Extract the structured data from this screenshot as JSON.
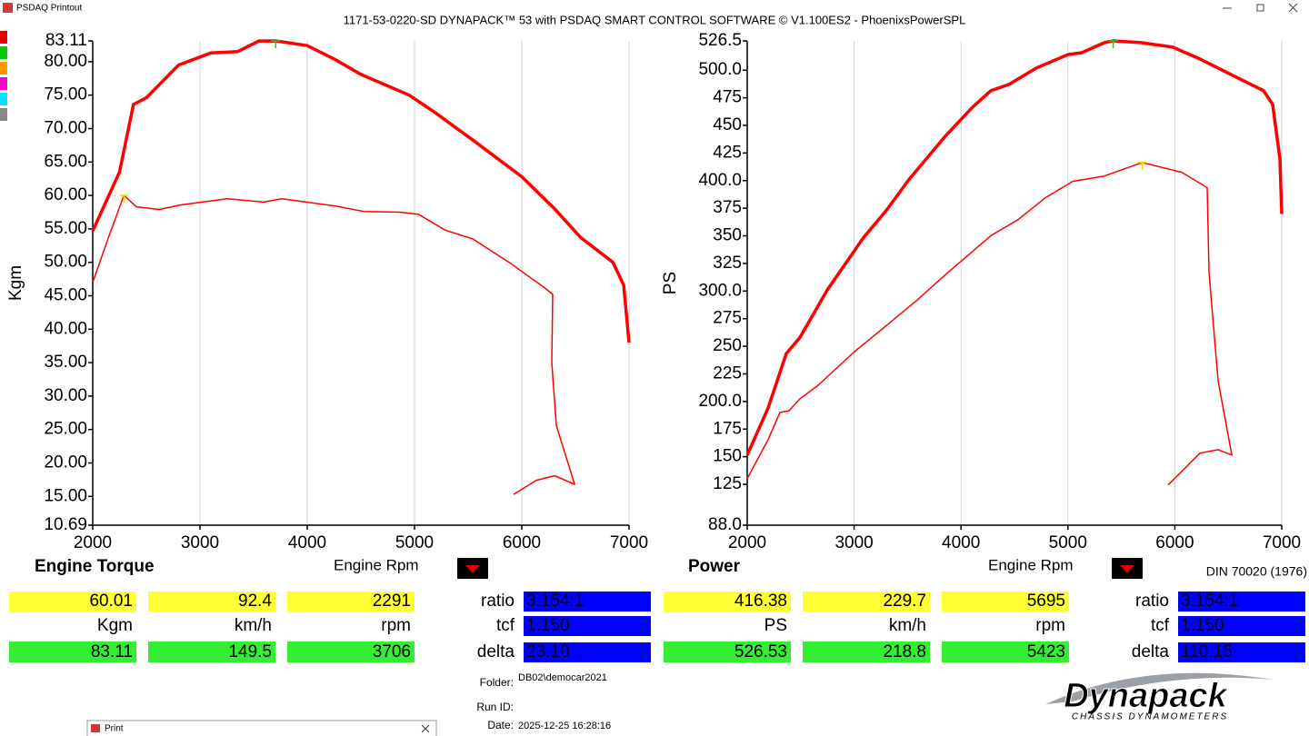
{
  "window": {
    "title": "PSDAQ Printout"
  },
  "header": {
    "title": "1171-53-0220-SD DYNAPACK™ 53 with PSDAQ SMART CONTROL SOFTWARE © V1.100ES2 - PhoenixsPowerSPL"
  },
  "chart_data": [
    {
      "type": "line",
      "y_label": "Kgm",
      "xlim": [
        2000,
        7000
      ],
      "xticks": [
        2000,
        3000,
        4000,
        5000,
        6000,
        7000
      ],
      "ylim": [
        10.69,
        83.11
      ],
      "yticks": [
        83.11,
        {
          "value": 80,
          "label": "80.00"
        },
        {
          "value": 75,
          "label": "75.00"
        },
        {
          "value": 70,
          "label": "70.00"
        },
        {
          "value": 65,
          "label": "65.00"
        },
        {
          "value": 60,
          "label": "60.00"
        },
        {
          "value": 55,
          "label": "55.00"
        },
        {
          "value": 50,
          "label": "50.00"
        },
        {
          "value": 45,
          "label": "45.00"
        },
        {
          "value": 40,
          "label": "40.00"
        },
        {
          "value": 35,
          "label": "35.00"
        },
        {
          "value": 30,
          "label": "30.00"
        },
        {
          "value": 25,
          "label": "25.00"
        },
        {
          "value": 20,
          "label": "20.00"
        },
        {
          "value": 15,
          "label": "15.00"
        },
        10.69
      ],
      "grid": "x",
      "series": [
        {
          "color": "#ff0000",
          "x": [
            2000,
            2250,
            2380,
            2500,
            2800,
            3100,
            3350,
            3550,
            3706,
            4000,
            4250,
            4500,
            4950,
            5200,
            5550,
            6000,
            6300,
            6550,
            6850,
            6950,
            7000
          ],
          "values": [
            54.7,
            63.5,
            73.6,
            74.6,
            79.5,
            81.3,
            81.5,
            83.1,
            83.11,
            82.4,
            80.4,
            78.1,
            75.0,
            72.3,
            68.2,
            62.8,
            58.1,
            53.7,
            50.0,
            46.6,
            38.0
          ]
        },
        {
          "color": "#ff0000",
          "x": [
            2000,
            2153,
            2291,
            2407,
            2619,
            2830,
            3254,
            3593,
            3763,
            4271,
            4525,
            4864,
            5034,
            5288,
            5542,
            5881,
            6220,
            6288,
            6280,
            6322,
            6492,
            6305,
            6136,
            5924
          ],
          "values": [
            47.0,
            54.0,
            60.01,
            58.3,
            57.9,
            58.6,
            59.5,
            59.0,
            59.5,
            58.4,
            57.6,
            57.5,
            57.2,
            54.8,
            53.5,
            50.0,
            46.1,
            45.2,
            35.0,
            25.6,
            16.8,
            18.1,
            17.4,
            15.3
          ]
        }
      ],
      "markers": [
        {
          "x": 3706,
          "y": 83.11,
          "color": "#22cc22"
        },
        {
          "x": 2291,
          "y": 60.01,
          "color": "#e6d800"
        }
      ]
    },
    {
      "type": "line",
      "y_label": "PS",
      "xlim": [
        2000,
        7000
      ],
      "xticks": [
        2000,
        3000,
        4000,
        5000,
        6000,
        7000
      ],
      "ylim": [
        88.0,
        526.5
      ],
      "yticks": [
        526.5,
        {
          "value": 500,
          "label": "500.0"
        },
        475.0,
        450.0,
        425.0,
        {
          "value": 400,
          "label": "400.0"
        },
        375.0,
        350.0,
        325.0,
        {
          "value": 300,
          "label": "300.0"
        },
        275.0,
        250.0,
        225.0,
        {
          "value": 200,
          "label": "200.0"
        },
        175.0,
        150.0,
        125.0,
        {
          "value": 88,
          "label": "88.0"
        }
      ],
      "grid": "x",
      "series": [
        {
          "color": "#ff0000",
          "x": [
            2000,
            2196,
            2366,
            2493,
            2748,
            3088,
            3301,
            3514,
            3854,
            4109,
            4279,
            4449,
            4704,
            5002,
            5129,
            5342,
            5423,
            5683,
            5980,
            6235,
            6575,
            6830,
            6915,
            6983,
            7000
          ],
          "values": [
            151.5,
            194.2,
            243.4,
            258.0,
            300.8,
            348.4,
            373.0,
            401.0,
            440.3,
            466.6,
            481.4,
            487.1,
            501.9,
            514.2,
            515.8,
            524.9,
            526.53,
            524.9,
            520.8,
            510.1,
            493.7,
            481.4,
            469.1,
            419.8,
            369.8
          ]
        },
        {
          "color": "#ff0000",
          "x": [
            2000,
            2196,
            2306,
            2391,
            2493,
            2663,
            3003,
            3344,
            3599,
            3854,
            4279,
            4534,
            4789,
            5044,
            5342,
            5554,
            5695,
            6065,
            6303,
            6320,
            6405,
            6533,
            6405,
            6235,
            5937
          ],
          "values": [
            130.2,
            165.5,
            190.1,
            191.7,
            202.4,
            214.7,
            245.1,
            272.1,
            292.6,
            314.8,
            350.1,
            364.7,
            384.5,
            399.3,
            404.2,
            411.6,
            416.38,
            407.5,
            393.6,
            317.3,
            218.8,
            151.5,
            156.4,
            153.2,
            124.4
          ]
        }
      ],
      "markers": [
        {
          "x": 5423,
          "y": 526.53,
          "color": "#22cc22"
        },
        {
          "x": 5695,
          "y": 416.38,
          "color": "#e6d800"
        }
      ]
    }
  ],
  "panels": [
    {
      "title": "Engine Torque",
      "x_label": "Engine Rpm",
      "current": [
        "60.01",
        "92.4",
        "2291"
      ],
      "units": [
        "Kgm",
        "km/h",
        "rpm"
      ],
      "peak": [
        "83.11",
        "149.5",
        "3706"
      ],
      "settings": [
        {
          "label": "ratio",
          "value": "3.154:1"
        },
        {
          "label": "tcf",
          "value": "1.150"
        },
        {
          "label": "delta",
          "value": "23.10"
        }
      ]
    },
    {
      "title": "Power",
      "x_label": "Engine Rpm",
      "standard": "DIN 70020 (1976)",
      "current": [
        "416.38",
        "229.7",
        "5695"
      ],
      "units": [
        "PS",
        "km/h",
        "rpm"
      ],
      "peak": [
        "526.53",
        "218.8",
        "5423"
      ],
      "settings": [
        {
          "label": "ratio",
          "value": "3.154:1"
        },
        {
          "label": "tcf",
          "value": "1.150"
        },
        {
          "label": "delta",
          "value": "110.15"
        }
      ]
    }
  ],
  "footer": {
    "folder_label": "Folder:",
    "folder": "DB02\\democar2021",
    "run_label": "Run ID:",
    "date_label": "Date:",
    "date": "2025-12-25 16:28:16"
  },
  "logo": {
    "name": "Dynapack",
    "tagline": "CHASSIS DYNAMOMETERS"
  },
  "print_window": {
    "title": "Print"
  }
}
